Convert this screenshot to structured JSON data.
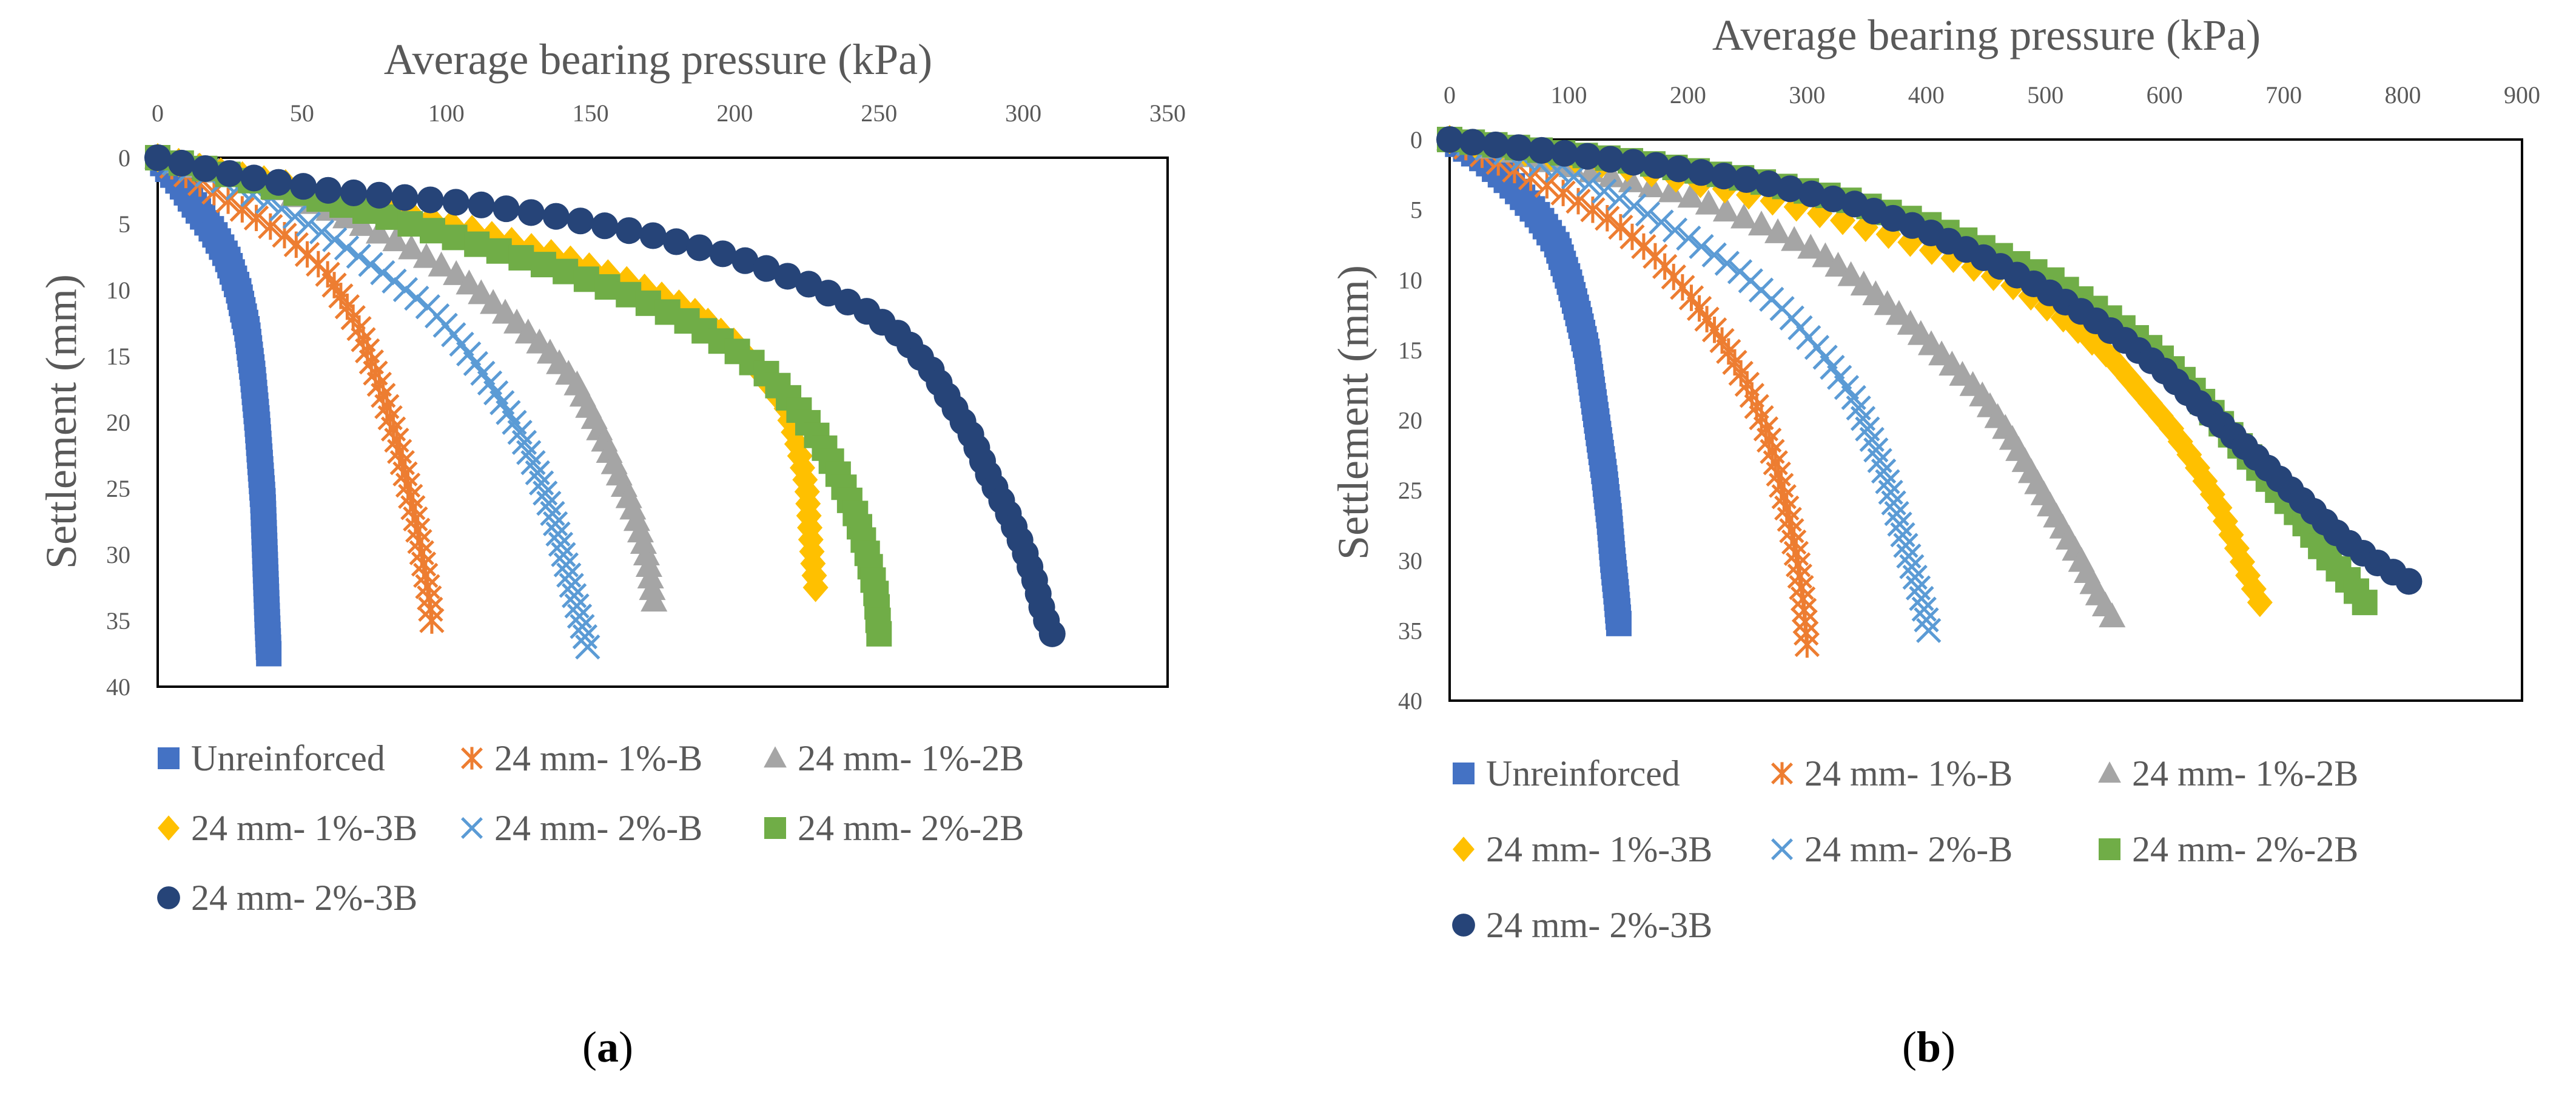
{
  "figure": {
    "colors": {
      "unreinforced": "#4472C4",
      "b1": "#ED7D31",
      "b1_2B": "#A5A5A5",
      "b1_3B": "#FFC000",
      "b2": "#5B9BD5",
      "b2_2B": "#70AD47",
      "b2_3B": "#264478",
      "axis": "#000000",
      "text": "#595959"
    },
    "legend_entries": [
      {
        "key": "unreinforced",
        "label": "Unreinforced",
        "marker": "square"
      },
      {
        "key": "b1",
        "label": "24 mm- 1%-B",
        "marker": "star"
      },
      {
        "key": "b1_2B",
        "label": "24 mm- 1%-2B",
        "marker": "triangle"
      },
      {
        "key": "b1_3B",
        "label": "24 mm- 1%-3B",
        "marker": "diamond"
      },
      {
        "key": "b2",
        "label": "24 mm- 2%-B",
        "marker": "x"
      },
      {
        "key": "b2_2B",
        "label": "24 mm- 2%-2B",
        "marker": "square"
      },
      {
        "key": "b2_3B",
        "label": "24 mm- 2%-3B",
        "marker": "circle"
      }
    ]
  },
  "chart_data": [
    {
      "type": "scatter",
      "panel": "a",
      "caption_open": "(",
      "caption_letter": "a",
      "caption_close": ")",
      "title": "",
      "xlabel": "Average bearing pressure  (kPa)",
      "ylabel": "Settlement (mm)",
      "x_position": "top",
      "y_inverted": true,
      "xlim": [
        0,
        350
      ],
      "ylim": [
        0,
        40
      ],
      "xticks": [
        0,
        50,
        100,
        150,
        200,
        250,
        300,
        350
      ],
      "yticks": [
        0,
        5,
        10,
        15,
        20,
        25,
        30,
        35,
        40
      ],
      "legend_position": "bottom",
      "series": [
        {
          "name": "Unreinforced",
          "key": "unreinforced",
          "marker": "square",
          "n": 80,
          "points": [
            [
              0,
              0
            ],
            [
              8,
              2
            ],
            [
              14,
              4
            ],
            [
              19,
              5.5
            ],
            [
              24,
              7.5
            ],
            [
              28,
              10
            ],
            [
              31,
              13
            ],
            [
              33,
              16.5
            ],
            [
              34.5,
              20
            ],
            [
              35.5,
              23
            ],
            [
              36.5,
              26
            ],
            [
              37,
              29
            ],
            [
              37.5,
              32
            ],
            [
              38,
              35
            ],
            [
              38.5,
              37.5
            ]
          ]
        },
        {
          "name": "24 mm- 1%-B",
          "key": "b1",
          "marker": "star",
          "n": 45,
          "points": [
            [
              0,
              0
            ],
            [
              15,
              2
            ],
            [
              30,
              4
            ],
            [
              45,
              6
            ],
            [
              58,
              8.5
            ],
            [
              65,
              11
            ],
            [
              70,
              13
            ],
            [
              75,
              16
            ],
            [
              79,
              18.5
            ],
            [
              83,
              21.5
            ],
            [
              87,
              25
            ],
            [
              90,
              28
            ],
            [
              92,
              30.5
            ],
            [
              94,
              33
            ],
            [
              95,
              35
            ]
          ]
        },
        {
          "name": "24 mm- 1%-2B",
          "key": "b1_2B",
          "marker": "triangle",
          "n": 48,
          "points": [
            [
              0,
              0
            ],
            [
              30,
              1.5
            ],
            [
              60,
              4
            ],
            [
              85,
              6.5
            ],
            [
              105,
              9
            ],
            [
              122,
              12
            ],
            [
              135,
              14.5
            ],
            [
              145,
              17
            ],
            [
              152,
              20
            ],
            [
              158,
              23
            ],
            [
              163,
              25.5
            ],
            [
              167,
              28
            ],
            [
              170,
              30.5
            ],
            [
              172,
              33.5
            ]
          ]
        },
        {
          "name": "24 mm- 1%-3B",
          "key": "b1_3B",
          "marker": "diamond",
          "n": 52,
          "points": [
            [
              0,
              0
            ],
            [
              20,
              1
            ],
            [
              45,
              2
            ],
            [
              75,
              3.5
            ],
            [
              110,
              5.5
            ],
            [
              140,
              7.5
            ],
            [
              165,
              9.5
            ],
            [
              185,
              11.5
            ],
            [
              200,
              14
            ],
            [
              210,
              16.5
            ],
            [
              218,
              19
            ],
            [
              222,
              22
            ],
            [
              225,
              25
            ],
            [
              226,
              28
            ],
            [
              227,
              30.5
            ],
            [
              228,
              32.5
            ]
          ]
        },
        {
          "name": "24 mm- 2%-B",
          "key": "b2",
          "marker": "x",
          "n": 55,
          "points": [
            [
              0,
              0
            ],
            [
              20,
              1.5
            ],
            [
              40,
              3.5
            ],
            [
              60,
              6
            ],
            [
              80,
              9
            ],
            [
              95,
              11.5
            ],
            [
              105,
              14
            ],
            [
              115,
              17
            ],
            [
              125,
              20.5
            ],
            [
              132,
              24
            ],
            [
              137,
              27
            ],
            [
              140,
              29.5
            ],
            [
              143,
              32
            ],
            [
              146,
              34.5
            ],
            [
              149,
              37
            ]
          ]
        },
        {
          "name": "24 mm- 2%-2B",
          "key": "b2_2B",
          "marker": "square",
          "n": 50,
          "points": [
            [
              0,
              0
            ],
            [
              20,
              1
            ],
            [
              45,
              2.5
            ],
            [
              80,
              4.5
            ],
            [
              110,
              6.5
            ],
            [
              140,
              8.5
            ],
            [
              165,
              10.5
            ],
            [
              185,
              12.5
            ],
            [
              200,
              14.5
            ],
            [
              212,
              16.5
            ],
            [
              222,
              19
            ],
            [
              230,
              21.5
            ],
            [
              236,
              24
            ],
            [
              242,
              27
            ],
            [
              246,
              30
            ],
            [
              249,
              33
            ],
            [
              250,
              36
            ]
          ]
        },
        {
          "name": "24 mm- 2%-3B",
          "key": "b2_3B",
          "marker": "circle",
          "n": 56,
          "points": [
            [
              0,
              0
            ],
            [
              20,
              1
            ],
            [
              40,
              1.8
            ],
            [
              60,
              2.5
            ],
            [
              85,
              3
            ],
            [
              110,
              3.5
            ],
            [
              140,
              4.5
            ],
            [
              170,
              5.8
            ],
            [
              200,
              7.5
            ],
            [
              225,
              9.5
            ],
            [
              245,
              11.5
            ],
            [
              258,
              13.5
            ],
            [
              268,
              16
            ],
            [
              275,
              18.5
            ],
            [
              282,
              21
            ],
            [
              288,
              24
            ],
            [
              295,
              27
            ],
            [
              300,
              29.5
            ],
            [
              304,
              32
            ],
            [
              307,
              34.5
            ],
            [
              310,
              36
            ]
          ]
        }
      ]
    },
    {
      "type": "scatter",
      "panel": "b",
      "caption_open": "(",
      "caption_letter": "b",
      "caption_close": ")",
      "title": "",
      "xlabel": "Average bearing pressure  (kPa)",
      "ylabel": "Settlement (mm)",
      "x_position": "top",
      "y_inverted": true,
      "xlim": [
        0,
        900
      ],
      "ylim": [
        0,
        40
      ],
      "xticks": [
        0,
        100,
        200,
        300,
        400,
        500,
        600,
        700,
        800,
        900
      ],
      "yticks": [
        0,
        5,
        10,
        15,
        20,
        25,
        30,
        35,
        40
      ],
      "legend_position": "bottom",
      "series": [
        {
          "name": "Unreinforced",
          "key": "unreinforced",
          "marker": "square",
          "n": 80,
          "points": [
            [
              0,
              0
            ],
            [
              30,
              1.5
            ],
            [
              55,
              3.5
            ],
            [
              75,
              5.5
            ],
            [
              90,
              7.5
            ],
            [
              100,
              10
            ],
            [
              108,
              12.5
            ],
            [
              115,
              15
            ],
            [
              120,
              18
            ],
            [
              125,
              21
            ],
            [
              130,
              24
            ],
            [
              134,
              27
            ],
            [
              137,
              30
            ],
            [
              140,
              32.5
            ],
            [
              142,
              34.5
            ]
          ]
        },
        {
          "name": "24 mm- 1%-B",
          "key": "b1",
          "marker": "star",
          "n": 50,
          "points": [
            [
              0,
              0
            ],
            [
              50,
              2
            ],
            [
              100,
              4
            ],
            [
              140,
              6
            ],
            [
              175,
              8.5
            ],
            [
              205,
              11.5
            ],
            [
              230,
              14.5
            ],
            [
              250,
              17.5
            ],
            [
              265,
              20.5
            ],
            [
              275,
              23.5
            ],
            [
              285,
              27
            ],
            [
              292,
              30
            ],
            [
              297,
              33
            ],
            [
              300,
              36
            ]
          ]
        },
        {
          "name": "24 mm- 1%-2B",
          "key": "b1_2B",
          "marker": "triangle",
          "n": 55,
          "points": [
            [
              0,
              0
            ],
            [
              60,
              1
            ],
            [
              130,
              2.5
            ],
            [
              200,
              4
            ],
            [
              260,
              6
            ],
            [
              310,
              8
            ],
            [
              350,
              10.5
            ],
            [
              385,
              13
            ],
            [
              415,
              15.5
            ],
            [
              445,
              18
            ],
            [
              470,
              21
            ],
            [
              490,
              24
            ],
            [
              510,
              27
            ],
            [
              530,
              30
            ],
            [
              545,
              32.5
            ],
            [
              556,
              34
            ]
          ]
        },
        {
          "name": "24 mm- 1%-3B",
          "key": "b1_3B",
          "marker": "diamond",
          "n": 50,
          "points": [
            [
              0,
              0
            ],
            [
              70,
              1
            ],
            [
              150,
              2
            ],
            [
              230,
              3.5
            ],
            [
              300,
              5
            ],
            [
              370,
              6.8
            ],
            [
              430,
              8.7
            ],
            [
              480,
              10.7
            ],
            [
              520,
              13
            ],
            [
              555,
              15.5
            ],
            [
              580,
              18
            ],
            [
              605,
              20.5
            ],
            [
              625,
              23
            ],
            [
              645,
              26
            ],
            [
              660,
              29
            ],
            [
              672,
              31.5
            ],
            [
              680,
              33
            ]
          ]
        },
        {
          "name": "24 mm- 2%-B",
          "key": "b2",
          "marker": "x",
          "n": 55,
          "points": [
            [
              0,
              0
            ],
            [
              50,
              1
            ],
            [
              100,
              2.5
            ],
            [
              150,
              4.5
            ],
            [
              200,
              7
            ],
            [
              245,
              9.5
            ],
            [
              285,
              12.5
            ],
            [
              315,
              15.5
            ],
            [
              340,
              18.5
            ],
            [
              355,
              21.5
            ],
            [
              368,
              24.5
            ],
            [
              378,
              27.5
            ],
            [
              388,
              30.5
            ],
            [
              397,
              33
            ],
            [
              402,
              35
            ]
          ]
        },
        {
          "name": "24 mm- 2%-2B",
          "key": "b2_2B",
          "marker": "square",
          "n": 60,
          "points": [
            [
              0,
              0
            ],
            [
              80,
              0.8
            ],
            [
              160,
              1.6
            ],
            [
              250,
              2.8
            ],
            [
              330,
              4.2
            ],
            [
              400,
              6
            ],
            [
              455,
              8
            ],
            [
              505,
              10
            ],
            [
              550,
              12.5
            ],
            [
              590,
              15
            ],
            [
              620,
              17.5
            ],
            [
              645,
              20
            ],
            [
              670,
              22.5
            ],
            [
              695,
              25
            ],
            [
              715,
              27
            ],
            [
              735,
              29.5
            ],
            [
              755,
              31.5
            ],
            [
              768,
              33
            ]
          ]
        },
        {
          "name": "24 mm- 2%-3B",
          "key": "b2_3B",
          "marker": "circle",
          "n": 58,
          "points": [
            [
              0,
              0
            ],
            [
              80,
              0.8
            ],
            [
              170,
              1.8
            ],
            [
              260,
              3
            ],
            [
              340,
              4.6
            ],
            [
              400,
              6.5
            ],
            [
              450,
              8.5
            ],
            [
              495,
              10.5
            ],
            [
              535,
              12.5
            ],
            [
              570,
              14.5
            ],
            [
              600,
              16.5
            ],
            [
              625,
              18.5
            ],
            [
              650,
              20.5
            ],
            [
              675,
              22.5
            ],
            [
              700,
              24.5
            ],
            [
              725,
              26.5
            ],
            [
              750,
              28.5
            ],
            [
              775,
              30
            ],
            [
              795,
              31
            ],
            [
              805,
              31.5
            ]
          ]
        }
      ]
    }
  ]
}
